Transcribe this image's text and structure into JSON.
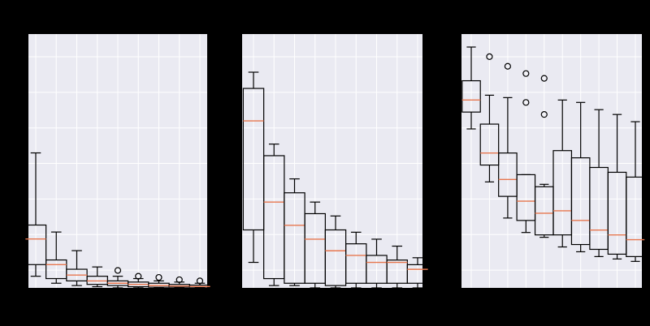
{
  "colors": {
    "figure_background": "#000000",
    "panel_background": "#eaeaf2",
    "grid": "#ffffff",
    "box_edge": "#000000",
    "median": "#e7774f"
  },
  "chart_data": [
    {
      "type": "box",
      "grid": true,
      "y_gridlines": 7,
      "x_gridlines": 9,
      "ylim": [
        0,
        1
      ],
      "boxes": [
        {
          "whislo": 0.05,
          "q1": 0.1,
          "med": 0.21,
          "q3": 0.27,
          "whishi": 0.58,
          "fliers": []
        },
        {
          "whislo": 0.02,
          "q1": 0.04,
          "med": 0.1,
          "q3": 0.12,
          "whishi": 0.24,
          "fliers": []
        },
        {
          "whislo": 0.01,
          "q1": 0.03,
          "med": 0.055,
          "q3": 0.08,
          "whishi": 0.16,
          "fliers": []
        },
        {
          "whislo": 0.005,
          "q1": 0.015,
          "med": 0.03,
          "q3": 0.05,
          "whishi": 0.09,
          "fliers": []
        },
        {
          "whislo": 0.0,
          "q1": 0.01,
          "med": 0.02,
          "q3": 0.03,
          "whishi": 0.05,
          "fliers": [
            0.075
          ]
        },
        {
          "whislo": 0.0,
          "q1": 0.005,
          "med": 0.015,
          "q3": 0.025,
          "whishi": 0.04,
          "fliers": [
            0.05
          ]
        },
        {
          "whislo": 0.0,
          "q1": 0.003,
          "med": 0.01,
          "q3": 0.02,
          "whishi": 0.03,
          "fliers": [
            0.045
          ]
        },
        {
          "whislo": 0.0,
          "q1": 0.003,
          "med": 0.008,
          "q3": 0.015,
          "whishi": 0.025,
          "fliers": [
            0.035
          ]
        },
        {
          "whislo": 0.0,
          "q1": 0.003,
          "med": 0.006,
          "q3": 0.012,
          "whishi": 0.02,
          "fliers": [
            0.03
          ]
        }
      ]
    },
    {
      "type": "box",
      "grid": true,
      "y_gridlines": 7,
      "x_gridlines": 9,
      "ylim": [
        0,
        1
      ],
      "boxes": [
        {
          "whislo": 0.11,
          "q1": 0.25,
          "med": 0.72,
          "q3": 0.86,
          "whishi": 0.93,
          "fliers": []
        },
        {
          "whislo": 0.01,
          "q1": 0.04,
          "med": 0.37,
          "q3": 0.57,
          "whishi": 0.62,
          "fliers": []
        },
        {
          "whislo": 0.01,
          "q1": 0.02,
          "med": 0.27,
          "q3": 0.41,
          "whishi": 0.47,
          "fliers": []
        },
        {
          "whislo": 0.0,
          "q1": 0.02,
          "med": 0.21,
          "q3": 0.32,
          "whishi": 0.37,
          "fliers": []
        },
        {
          "whislo": 0.0,
          "q1": 0.01,
          "med": 0.16,
          "q3": 0.25,
          "whishi": 0.31,
          "fliers": []
        },
        {
          "whislo": 0.0,
          "q1": 0.02,
          "med": 0.14,
          "q3": 0.19,
          "whishi": 0.24,
          "fliers": []
        },
        {
          "whislo": 0.0,
          "q1": 0.02,
          "med": 0.11,
          "q3": 0.14,
          "whishi": 0.21,
          "fliers": []
        },
        {
          "whislo": 0.0,
          "q1": 0.02,
          "med": 0.11,
          "q3": 0.12,
          "whishi": 0.18,
          "fliers": []
        },
        {
          "whislo": 0.0,
          "q1": 0.02,
          "med": 0.08,
          "q3": 0.1,
          "whishi": 0.13,
          "fliers": []
        }
      ]
    },
    {
      "type": "box",
      "grid": true,
      "y_gridlines": 7,
      "x_gridlines": 9,
      "ylim": [
        0,
        1
      ],
      "boxes": [
        {
          "whislo": 0.66,
          "q1": 0.73,
          "med": 0.78,
          "q3": 0.86,
          "whishi": 1.0,
          "fliers": []
        },
        {
          "whislo": 0.44,
          "q1": 0.51,
          "med": 0.56,
          "q3": 0.68,
          "whishi": 0.8,
          "fliers": [
            0.96
          ]
        },
        {
          "whislo": 0.29,
          "q1": 0.38,
          "med": 0.45,
          "q3": 0.56,
          "whishi": 0.79,
          "fliers": [
            0.92
          ]
        },
        {
          "whislo": 0.23,
          "q1": 0.28,
          "med": 0.36,
          "q3": 0.47,
          "whishi": 0.47,
          "fliers": [
            0.77,
            0.89
          ]
        },
        {
          "whislo": 0.21,
          "q1": 0.22,
          "med": 0.31,
          "q3": 0.42,
          "whishi": 0.43,
          "fliers": [
            0.72,
            0.87
          ]
        },
        {
          "whislo": 0.17,
          "q1": 0.22,
          "med": 0.32,
          "q3": 0.57,
          "whishi": 0.78,
          "fliers": []
        },
        {
          "whislo": 0.15,
          "q1": 0.18,
          "med": 0.28,
          "q3": 0.54,
          "whishi": 0.77,
          "fliers": []
        },
        {
          "whislo": 0.13,
          "q1": 0.16,
          "med": 0.24,
          "q3": 0.5,
          "whishi": 0.74,
          "fliers": []
        },
        {
          "whislo": 0.12,
          "q1": 0.14,
          "med": 0.22,
          "q3": 0.48,
          "whishi": 0.72,
          "fliers": []
        },
        {
          "whislo": 0.11,
          "q1": 0.13,
          "med": 0.2,
          "q3": 0.46,
          "whishi": 0.69,
          "fliers": []
        }
      ]
    }
  ]
}
